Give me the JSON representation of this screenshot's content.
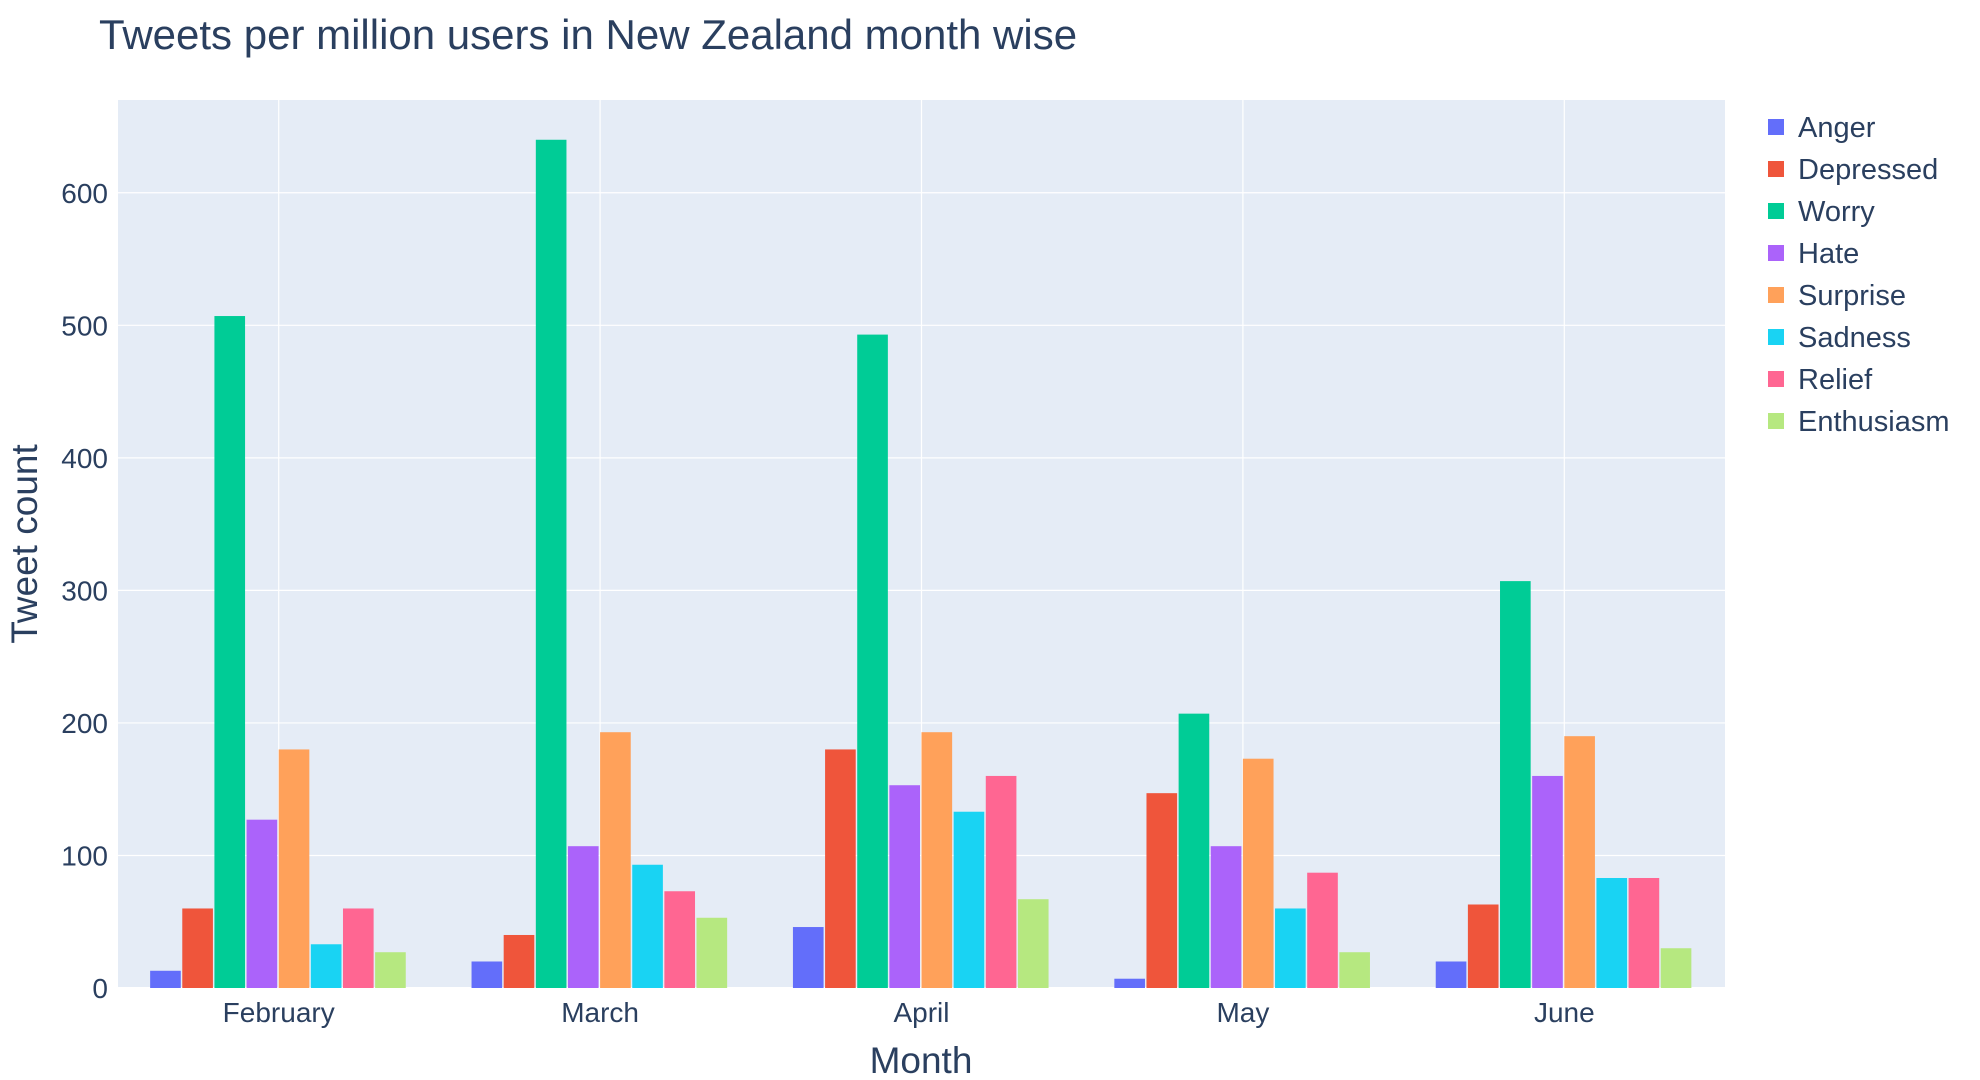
{
  "chart_data": {
    "type": "bar",
    "title": "Tweets per million users in New Zealand month wise",
    "xlabel": "Month",
    "ylabel": "Tweet count",
    "categories": [
      "February",
      "March",
      "April",
      "May",
      "June"
    ],
    "ylim": [
      0,
      670
    ],
    "yticks": [
      0,
      100,
      200,
      300,
      400,
      500,
      600
    ],
    "grid": true,
    "legend_position": "right",
    "plot_background": "#e5ecf6",
    "series": [
      {
        "name": "Anger",
        "color": "#636efa",
        "values": [
          13,
          20,
          46,
          7,
          20
        ]
      },
      {
        "name": "Depressed",
        "color": "#ef553b",
        "values": [
          60,
          40,
          180,
          147,
          63
        ]
      },
      {
        "name": "Worry",
        "color": "#00cc96",
        "values": [
          507,
          640,
          493,
          207,
          307
        ]
      },
      {
        "name": "Hate",
        "color": "#ab63fa",
        "values": [
          127,
          107,
          153,
          107,
          160
        ]
      },
      {
        "name": "Surprise",
        "color": "#ffa15a",
        "values": [
          180,
          193,
          193,
          173,
          190
        ]
      },
      {
        "name": "Sadness",
        "color": "#19d3f3",
        "values": [
          33,
          93,
          133,
          60,
          83
        ]
      },
      {
        "name": "Relief",
        "color": "#ff6692",
        "values": [
          60,
          73,
          160,
          87,
          83
        ]
      },
      {
        "name": "Enthusiasm",
        "color": "#b6e880",
        "values": [
          27,
          53,
          67,
          27,
          30
        ]
      }
    ]
  }
}
